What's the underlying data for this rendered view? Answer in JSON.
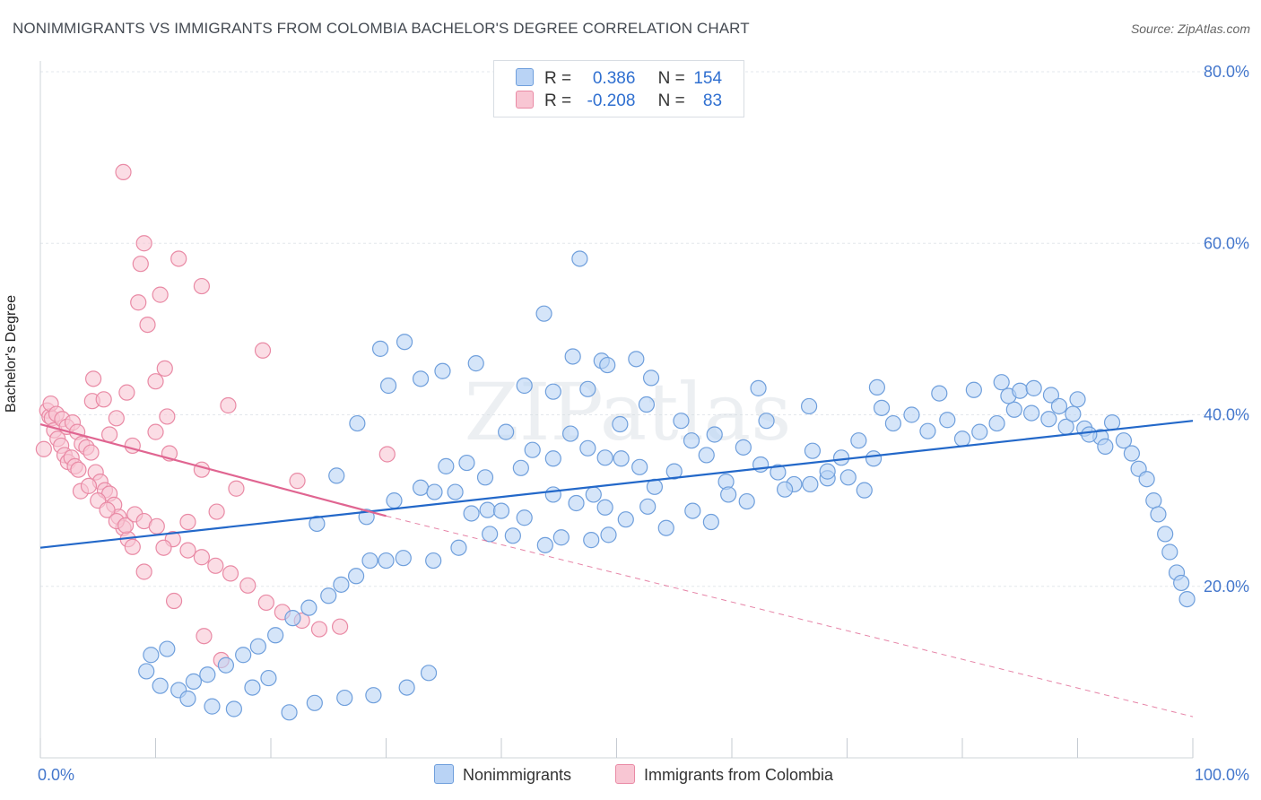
{
  "title": "NONIMMIGRANTS VS IMMIGRANTS FROM COLOMBIA BACHELOR'S DEGREE CORRELATION CHART",
  "source": "Source: ZipAtlas.com",
  "watermark": "ZIPatlas",
  "legend": {
    "series1": {
      "r_label": "R =",
      "r_value": "0.386",
      "n_label": "N =",
      "n_value": "154"
    },
    "series2": {
      "r_label": "R =",
      "r_value": "-0.208",
      "n_label": "N =",
      "n_value": "83"
    }
  },
  "colors": {
    "blue_fill": "#b9d3f5",
    "blue_stroke": "#6f9fdc",
    "blue_line": "#2368c9",
    "pink_fill": "#f8c6d3",
    "pink_stroke": "#e98aa5",
    "pink_line": "#e06591",
    "axis_text": "#4477cc",
    "grid": "#e3e7ec"
  },
  "chart_data": {
    "type": "scatter",
    "title": "NONIMMIGRANTS VS IMMIGRANTS FROM COLOMBIA BACHELOR'S DEGREE CORRELATION CHART",
    "xlabel": "",
    "ylabel": "Bachelor's Degree",
    "xlim": [
      0,
      100
    ],
    "ylim": [
      0,
      80
    ],
    "x_tick_labels": [
      "0.0%",
      "100.0%"
    ],
    "y_tick_labels": [
      "20.0%",
      "40.0%",
      "60.0%",
      "80.0%"
    ],
    "y_ticks": [
      20,
      40,
      60,
      80
    ],
    "grid": true,
    "legend_position": "top-center",
    "series": [
      {
        "name": "Nonimmigrants",
        "r": 0.386,
        "n": 154,
        "trend": [
          [
            0,
            24.5
          ],
          [
            100,
            39.3
          ]
        ],
        "points": [
          [
            29.5,
            47.7
          ],
          [
            35.2,
            34.0
          ],
          [
            37.0,
            34.4
          ],
          [
            38.6,
            32.7
          ],
          [
            27.5,
            39.0
          ],
          [
            28.3,
            28.1
          ],
          [
            24.0,
            27.3
          ],
          [
            25.7,
            32.9
          ],
          [
            30.7,
            30.0
          ],
          [
            33.0,
            31.5
          ],
          [
            34.2,
            31.0
          ],
          [
            36.0,
            31.0
          ],
          [
            37.4,
            28.5
          ],
          [
            38.8,
            28.9
          ],
          [
            40.0,
            28.8
          ],
          [
            42.0,
            28.0
          ],
          [
            44.5,
            30.7
          ],
          [
            46.5,
            29.7
          ],
          [
            48.0,
            30.7
          ],
          [
            49.0,
            29.2
          ],
          [
            40.4,
            38.0
          ],
          [
            41.7,
            33.8
          ],
          [
            42.7,
            35.9
          ],
          [
            44.5,
            34.9
          ],
          [
            46.0,
            37.8
          ],
          [
            47.5,
            36.1
          ],
          [
            49.0,
            35.0
          ],
          [
            50.4,
            34.9
          ],
          [
            52.0,
            33.9
          ],
          [
            53.3,
            31.6
          ],
          [
            55.0,
            33.4
          ],
          [
            56.5,
            37.0
          ],
          [
            57.8,
            35.3
          ],
          [
            59.5,
            32.2
          ],
          [
            61.0,
            36.2
          ],
          [
            62.5,
            34.2
          ],
          [
            64.0,
            33.3
          ],
          [
            65.4,
            31.9
          ],
          [
            67.0,
            35.8
          ],
          [
            68.3,
            32.6
          ],
          [
            69.5,
            35.0
          ],
          [
            71.0,
            37.0
          ],
          [
            72.3,
            34.9
          ],
          [
            74.0,
            39.0
          ],
          [
            75.6,
            40.0
          ],
          [
            77.0,
            38.1
          ],
          [
            78.7,
            39.4
          ],
          [
            80.0,
            37.2
          ],
          [
            81.5,
            38.0
          ],
          [
            83.0,
            39.0
          ],
          [
            84.5,
            40.6
          ],
          [
            86.0,
            40.2
          ],
          [
            87.5,
            39.5
          ],
          [
            89.0,
            38.6
          ],
          [
            90.6,
            38.4
          ],
          [
            92.0,
            37.4
          ],
          [
            93.0,
            39.1
          ],
          [
            94.0,
            37.0
          ],
          [
            94.7,
            35.5
          ],
          [
            95.3,
            33.7
          ],
          [
            96.0,
            32.5
          ],
          [
            96.6,
            30.0
          ],
          [
            97.0,
            28.4
          ],
          [
            97.6,
            26.1
          ],
          [
            98.0,
            24.0
          ],
          [
            98.6,
            21.6
          ],
          [
            99.0,
            20.4
          ],
          [
            99.5,
            18.5
          ],
          [
            90.0,
            41.8
          ],
          [
            84.0,
            42.2
          ],
          [
            81.0,
            42.9
          ],
          [
            73.0,
            40.8
          ],
          [
            66.7,
            41.0
          ],
          [
            63.0,
            39.3
          ],
          [
            58.5,
            37.7
          ],
          [
            55.6,
            39.3
          ],
          [
            52.6,
            41.2
          ],
          [
            50.3,
            38.9
          ],
          [
            47.5,
            43.0
          ],
          [
            44.5,
            42.7
          ],
          [
            42.0,
            43.4
          ],
          [
            37.8,
            46.0
          ],
          [
            34.9,
            45.1
          ],
          [
            33.0,
            44.2
          ],
          [
            30.2,
            43.4
          ],
          [
            31.6,
            48.5
          ],
          [
            43.7,
            51.8
          ],
          [
            46.2,
            46.8
          ],
          [
            48.7,
            46.3
          ],
          [
            49.2,
            45.8
          ],
          [
            51.7,
            46.5
          ],
          [
            46.8,
            58.2
          ],
          [
            53.0,
            44.3
          ],
          [
            62.3,
            43.1
          ],
          [
            72.6,
            43.2
          ],
          [
            78.0,
            42.5
          ],
          [
            83.4,
            43.8
          ],
          [
            85.0,
            42.8
          ],
          [
            86.2,
            43.1
          ],
          [
            87.7,
            42.3
          ],
          [
            88.4,
            41.0
          ],
          [
            89.6,
            40.1
          ],
          [
            91.0,
            37.7
          ],
          [
            92.4,
            36.3
          ],
          [
            71.5,
            31.2
          ],
          [
            70.1,
            32.7
          ],
          [
            68.3,
            33.4
          ],
          [
            66.8,
            31.9
          ],
          [
            64.6,
            31.3
          ],
          [
            61.3,
            29.9
          ],
          [
            59.7,
            30.7
          ],
          [
            58.2,
            27.5
          ],
          [
            56.6,
            28.8
          ],
          [
            54.3,
            26.8
          ],
          [
            52.7,
            29.3
          ],
          [
            50.8,
            27.8
          ],
          [
            49.3,
            26.0
          ],
          [
            47.8,
            25.4
          ],
          [
            45.2,
            25.7
          ],
          [
            43.8,
            24.8
          ],
          [
            41.0,
            25.9
          ],
          [
            39.0,
            26.1
          ],
          [
            36.3,
            24.5
          ],
          [
            34.1,
            23.0
          ],
          [
            31.5,
            23.3
          ],
          [
            30.0,
            23.0
          ],
          [
            28.6,
            23.0
          ],
          [
            27.4,
            21.2
          ],
          [
            26.1,
            20.2
          ],
          [
            25.0,
            18.9
          ],
          [
            23.3,
            17.5
          ],
          [
            21.9,
            16.3
          ],
          [
            20.4,
            14.3
          ],
          [
            18.9,
            13.0
          ],
          [
            17.6,
            12.0
          ],
          [
            16.1,
            10.8
          ],
          [
            14.5,
            9.7
          ],
          [
            13.3,
            8.9
          ],
          [
            12.0,
            7.9
          ],
          [
            11.0,
            12.7
          ],
          [
            9.6,
            12.0
          ],
          [
            9.2,
            10.1
          ],
          [
            10.4,
            8.4
          ],
          [
            12.8,
            6.9
          ],
          [
            14.9,
            6.0
          ],
          [
            16.8,
            5.7
          ],
          [
            18.4,
            8.2
          ],
          [
            19.8,
            9.3
          ],
          [
            21.6,
            5.3
          ],
          [
            23.8,
            6.4
          ],
          [
            26.4,
            7.0
          ],
          [
            28.9,
            7.3
          ],
          [
            31.8,
            8.2
          ],
          [
            33.7,
            9.9
          ]
        ]
      },
      {
        "name": "Immigrants from Colombia",
        "r": -0.208,
        "n": 83,
        "trend": [
          [
            0,
            38.9
          ],
          [
            30,
            28.2
          ]
        ],
        "trend_dashed": [
          [
            30,
            28.2
          ],
          [
            100,
            4.8
          ]
        ],
        "points": [
          [
            0.3,
            36.0
          ],
          [
            0.6,
            40.5
          ],
          [
            0.8,
            39.8
          ],
          [
            1.0,
            39.6
          ],
          [
            1.2,
            38.2
          ],
          [
            1.5,
            37.2
          ],
          [
            1.8,
            36.4
          ],
          [
            2.1,
            35.3
          ],
          [
            2.4,
            34.5
          ],
          [
            2.7,
            35.0
          ],
          [
            3.0,
            34.0
          ],
          [
            3.3,
            33.6
          ],
          [
            0.9,
            41.3
          ],
          [
            1.4,
            40.1
          ],
          [
            1.9,
            39.5
          ],
          [
            2.3,
            38.6
          ],
          [
            2.8,
            39.1
          ],
          [
            3.2,
            38.0
          ],
          [
            3.6,
            36.6
          ],
          [
            4.0,
            36.2
          ],
          [
            4.4,
            35.6
          ],
          [
            4.8,
            33.3
          ],
          [
            5.2,
            32.2
          ],
          [
            5.6,
            31.2
          ],
          [
            6.0,
            30.8
          ],
          [
            6.4,
            29.5
          ],
          [
            6.8,
            28.1
          ],
          [
            7.2,
            26.8
          ],
          [
            7.6,
            25.5
          ],
          [
            8.0,
            24.6
          ],
          [
            3.5,
            31.1
          ],
          [
            4.2,
            31.7
          ],
          [
            5.0,
            30.0
          ],
          [
            5.8,
            28.9
          ],
          [
            6.6,
            27.6
          ],
          [
            7.4,
            27.1
          ],
          [
            8.2,
            28.4
          ],
          [
            9.0,
            27.6
          ],
          [
            10.1,
            27.0
          ],
          [
            11.5,
            25.5
          ],
          [
            12.8,
            24.2
          ],
          [
            14.0,
            23.4
          ],
          [
            15.2,
            22.4
          ],
          [
            16.5,
            21.5
          ],
          [
            18.0,
            20.1
          ],
          [
            19.6,
            18.1
          ],
          [
            21.0,
            17.0
          ],
          [
            22.7,
            16.0
          ],
          [
            24.2,
            15.0
          ],
          [
            7.2,
            68.3
          ],
          [
            9.0,
            60.0
          ],
          [
            8.7,
            57.6
          ],
          [
            12.0,
            58.2
          ],
          [
            14.0,
            55.0
          ],
          [
            8.5,
            53.1
          ],
          [
            10.4,
            54.0
          ],
          [
            9.3,
            50.5
          ],
          [
            19.3,
            47.5
          ],
          [
            10.8,
            45.4
          ],
          [
            10.0,
            43.9
          ],
          [
            7.5,
            42.6
          ],
          [
            4.6,
            44.2
          ],
          [
            4.5,
            41.6
          ],
          [
            5.5,
            41.8
          ],
          [
            10.0,
            38.0
          ],
          [
            16.3,
            41.1
          ],
          [
            11.0,
            39.8
          ],
          [
            6.6,
            39.6
          ],
          [
            6.0,
            37.7
          ],
          [
            8.0,
            36.4
          ],
          [
            11.2,
            35.5
          ],
          [
            14.0,
            33.6
          ],
          [
            17.0,
            31.4
          ],
          [
            22.3,
            32.3
          ],
          [
            30.1,
            35.4
          ],
          [
            15.3,
            28.7
          ],
          [
            12.8,
            27.5
          ],
          [
            10.7,
            24.5
          ],
          [
            9.0,
            21.7
          ],
          [
            11.6,
            18.3
          ],
          [
            14.2,
            14.2
          ],
          [
            15.7,
            11.4
          ],
          [
            26.0,
            15.3
          ]
        ]
      }
    ]
  },
  "bottom_legend": {
    "item1": "Nonimmigrants",
    "item2": "Immigrants from Colombia"
  }
}
